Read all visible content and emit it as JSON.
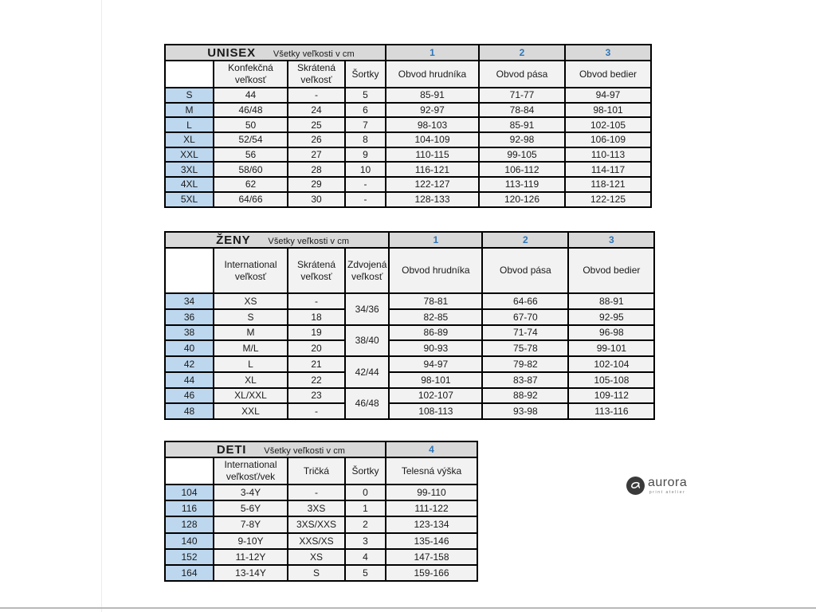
{
  "colors": {
    "title_bg": "#d9d9d9",
    "header_bg": "#f2f2f2",
    "cell_bg": "#f2f2f2",
    "size_col_bg": "#bdd7ee",
    "measure_number": "#2e75b6",
    "border": "#000000"
  },
  "tables": [
    {
      "id": "unisex",
      "title": "UNISEX",
      "subtitle": "Všetky veľkosti v cm",
      "measure_numbers": [
        "1",
        "2",
        "3"
      ],
      "col_headers": [
        "",
        "Konfekčná veľkosť",
        "Skrátená veľkosť",
        "Šortky",
        "Obvod hrudníka",
        "Obvod pása",
        "Obvod bedier"
      ],
      "rows": [
        [
          "S",
          "44",
          "-",
          "5",
          "85-91",
          "71-77",
          "94-97"
        ],
        [
          "M",
          "46/48",
          "24",
          "6",
          "92-97",
          "78-84",
          "98-101"
        ],
        [
          "L",
          "50",
          "25",
          "7",
          "98-103",
          "85-91",
          "102-105"
        ],
        [
          "XL",
          "52/54",
          "26",
          "8",
          "104-109",
          "92-98",
          "106-109"
        ],
        [
          "XXL",
          "56",
          "27",
          "9",
          "110-115",
          "99-105",
          "110-113"
        ],
        [
          "3XL",
          "58/60",
          "28",
          "10",
          "116-121",
          "106-112",
          "114-117"
        ],
        [
          "4XL",
          "62",
          "29",
          "-",
          "122-127",
          "113-119",
          "118-121"
        ],
        [
          "5XL",
          "64/66",
          "30",
          "-",
          "128-133",
          "120-126",
          "122-125"
        ]
      ]
    },
    {
      "id": "zeny",
      "title": "ŽENY",
      "subtitle": "Všetky veľkosti v cm",
      "measure_numbers": [
        "1",
        "2",
        "3"
      ],
      "col_headers": [
        "",
        "International veľkosť",
        "Skrátená veľkosť",
        "Zdvojená veľkosť",
        "Obvod hrudníka",
        "Obvod pása",
        "Obvod bedier"
      ],
      "rows": [
        [
          "34",
          "XS",
          "-",
          {
            "text": "34/36",
            "rowspan": 2
          },
          "78-81",
          "64-66",
          "88-91"
        ],
        [
          "36",
          "S",
          "18",
          null,
          "82-85",
          "67-70",
          "92-95"
        ],
        [
          "38",
          "M",
          "19",
          {
            "text": "38/40",
            "rowspan": 2
          },
          "86-89",
          "71-74",
          "96-98"
        ],
        [
          "40",
          "M/L",
          "20",
          null,
          "90-93",
          "75-78",
          "99-101"
        ],
        [
          "42",
          "L",
          "21",
          {
            "text": "42/44",
            "rowspan": 2
          },
          "94-97",
          "79-82",
          "102-104"
        ],
        [
          "44",
          "XL",
          "22",
          null,
          "98-101",
          "83-87",
          "105-108"
        ],
        [
          "46",
          "XL/XXL",
          "23",
          {
            "text": "46/48",
            "rowspan": 2
          },
          "102-107",
          "88-92",
          "109-112"
        ],
        [
          "48",
          "XXL",
          "-",
          null,
          "108-113",
          "93-98",
          "113-116"
        ]
      ]
    },
    {
      "id": "deti",
      "title": "DETI",
      "subtitle": "Všetky veľkosti v cm",
      "measure_numbers": [
        "4"
      ],
      "col_headers": [
        "",
        "International veľkosť/vek",
        "Tričká",
        "Šortky",
        "Telesná výška"
      ],
      "rows": [
        [
          "104",
          "3-4Y",
          "-",
          "0",
          "99-110"
        ],
        [
          "116",
          "5-6Y",
          "3XS",
          "1",
          "111-122"
        ],
        [
          "128",
          "7-8Y",
          "3XS/XXS",
          "2",
          "123-134"
        ],
        [
          "140",
          "9-10Y",
          "XXS/XS",
          "3",
          "135-146"
        ],
        [
          "152",
          "11-12Y",
          "XS",
          "4",
          "147-158"
        ],
        [
          "164",
          "13-14Y",
          "S",
          "5",
          "159-166"
        ]
      ]
    }
  ],
  "logo": {
    "brand": "aurora",
    "tagline": "print atelier"
  }
}
